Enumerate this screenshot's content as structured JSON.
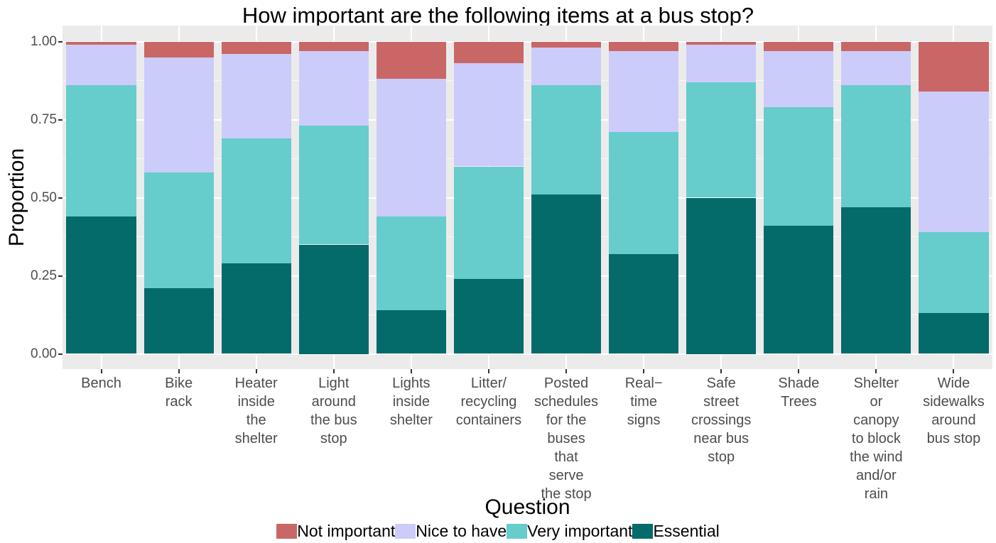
{
  "title": "How important are the following items at a bus stop?",
  "x_axis": {
    "title": "Question"
  },
  "y_axis": {
    "title": "Proportion",
    "tick_labels": [
      "0.00",
      "0.25",
      "0.50",
      "0.75",
      "1.00"
    ],
    "tick_values": [
      0,
      0.25,
      0.5,
      0.75,
      1.0
    ],
    "minor_tick_values": [
      0.125,
      0.375,
      0.625,
      0.875
    ]
  },
  "legend": {
    "items": [
      {
        "label": "Not important",
        "color": "#C96767"
      },
      {
        "label": "Nice to have",
        "color": "#CCCCFA"
      },
      {
        "label": "Very important",
        "color": "#66CCCC"
      },
      {
        "label": "Essential",
        "color": "#046A6A"
      }
    ]
  },
  "colors": {
    "panel_background": "#EBEBEB",
    "gridline": "#FFFFFF",
    "tick_text": "#4D4D4D",
    "axis_text": "#000000"
  },
  "chart_data": {
    "type": "bar",
    "subtype": "stacked-proportion",
    "title": "How important are the following items at a bus stop?",
    "xlabel": "Question",
    "ylabel": "Proportion",
    "ylim": [
      0,
      1
    ],
    "grid": true,
    "legend_position": "bottom",
    "categories": [
      "Bench",
      "Bike rack",
      "Heater inside the shelter",
      "Light around the bus stop",
      "Lights inside shelter",
      "Litter/ recycling containers",
      "Posted schedules for the buses that serve the stop",
      "Real−time signs",
      "Safe street crossings near bus stop",
      "Shade Trees",
      "Shelter or canopy to block the wind and/or rain",
      "Wide sidewalks around bus stop"
    ],
    "category_display_lines": [
      [
        "Bench"
      ],
      [
        "Bike",
        "rack"
      ],
      [
        "Heater",
        "inside",
        "the",
        "shelter"
      ],
      [
        "Light",
        "around",
        "the bus",
        "stop"
      ],
      [
        "Lights",
        "inside",
        "shelter"
      ],
      [
        "Litter/",
        "recycling",
        "containers"
      ],
      [
        "Posted",
        "schedules",
        "for the",
        "buses",
        "that",
        "serve",
        "the stop"
      ],
      [
        "Real−",
        "time",
        "signs"
      ],
      [
        "Safe",
        "street",
        "crossings",
        "near bus",
        "stop"
      ],
      [
        "Shade",
        "Trees"
      ],
      [
        "Shelter",
        "or",
        "canopy",
        "to block",
        "the wind",
        "and/or",
        "rain"
      ],
      [
        "Wide",
        "sidewalks",
        "around",
        "bus stop"
      ]
    ],
    "series": [
      {
        "name": "Essential",
        "color": "#046A6A",
        "values": [
          0.44,
          0.21,
          0.29,
          0.35,
          0.14,
          0.24,
          0.51,
          0.32,
          0.5,
          0.41,
          0.47,
          0.13
        ]
      },
      {
        "name": "Very important",
        "color": "#66CCCC",
        "values": [
          0.42,
          0.37,
          0.4,
          0.38,
          0.3,
          0.36,
          0.35,
          0.39,
          0.37,
          0.38,
          0.39,
          0.26
        ]
      },
      {
        "name": "Nice to have",
        "color": "#CCCCFA",
        "values": [
          0.13,
          0.37,
          0.27,
          0.24,
          0.44,
          0.33,
          0.12,
          0.26,
          0.12,
          0.18,
          0.11,
          0.45
        ]
      },
      {
        "name": "Not important",
        "color": "#C96767",
        "values": [
          0.01,
          0.05,
          0.04,
          0.03,
          0.12,
          0.07,
          0.02,
          0.03,
          0.01,
          0.03,
          0.03,
          0.16
        ]
      }
    ]
  }
}
